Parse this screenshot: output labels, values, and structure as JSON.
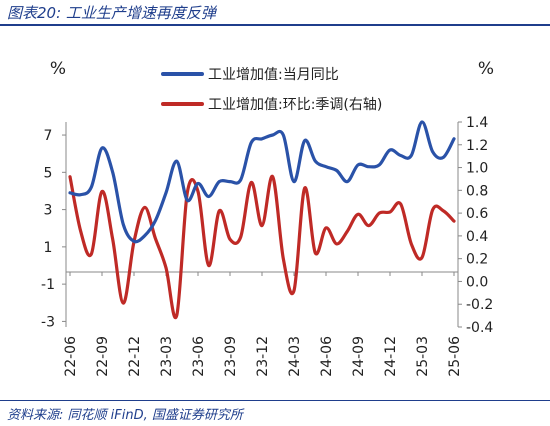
{
  "title": "图表20:  工业生产增速再度反弹",
  "source": "资料来源:  同花顺 iFinD,  国盛证券研究所",
  "chart_data": {
    "type": "line",
    "x": [
      "22-06",
      "22-07",
      "22-08",
      "22-09",
      "22-10",
      "22-11",
      "22-12",
      "23-01",
      "23-02",
      "23-03",
      "23-04",
      "23-05",
      "23-06",
      "23-07",
      "23-08",
      "23-09",
      "23-10",
      "23-11",
      "23-12",
      "24-01",
      "24-02",
      "24-03",
      "24-04",
      "24-05",
      "24-06",
      "24-07",
      "24-08",
      "24-09",
      "24-10",
      "24-11",
      "24-12",
      "25-01",
      "25-02",
      "25-03",
      "25-04",
      "25-05",
      "25-06"
    ],
    "xticks": [
      "22-06",
      "22-09",
      "22-12",
      "23-03",
      "23-06",
      "23-09",
      "23-12",
      "24-03",
      "24-06",
      "24-09",
      "24-12",
      "25-03",
      "25-06"
    ],
    "yleft": {
      "label": "%",
      "ticks": [
        "7",
        "5",
        "3",
        "1",
        "-1",
        "-3"
      ],
      "lim": [
        -3.3,
        7.7
      ]
    },
    "yright": {
      "label": "%",
      "ticks": [
        "1.4",
        "1.2",
        "1.0",
        "0.8",
        "0.6",
        "0.4",
        "0.2",
        "0.0",
        "-0.2",
        "-0.4"
      ],
      "lim": [
        -0.4,
        1.4
      ]
    },
    "series": [
      {
        "name": "工业增加值:当月同比",
        "axis": "left",
        "color": "#2a52a8",
        "values": [
          3.9,
          3.8,
          4.2,
          6.3,
          5.0,
          2.2,
          1.3,
          1.6,
          2.4,
          3.9,
          5.6,
          3.5,
          4.4,
          3.7,
          4.5,
          4.5,
          4.6,
          6.6,
          6.8,
          7.0,
          7.0,
          4.5,
          6.7,
          5.6,
          5.3,
          5.1,
          4.5,
          5.4,
          5.3,
          5.4,
          6.2,
          5.9,
          5.9,
          7.7,
          6.1,
          5.8,
          6.8
        ]
      },
      {
        "name": "工业增加值:环比:季调(右轴)",
        "axis": "right",
        "color": "#bf2a26",
        "values": [
          0.92,
          0.44,
          0.24,
          0.79,
          0.37,
          -0.19,
          0.35,
          0.65,
          0.38,
          0.12,
          -0.3,
          0.78,
          0.79,
          0.14,
          0.62,
          0.37,
          0.39,
          0.87,
          0.49,
          0.92,
          0.2,
          -0.08,
          0.82,
          0.25,
          0.47,
          0.33,
          0.44,
          0.59,
          0.49,
          0.6,
          0.61,
          0.68,
          0.33,
          0.21,
          0.63,
          0.62,
          0.53
        ]
      }
    ]
  }
}
